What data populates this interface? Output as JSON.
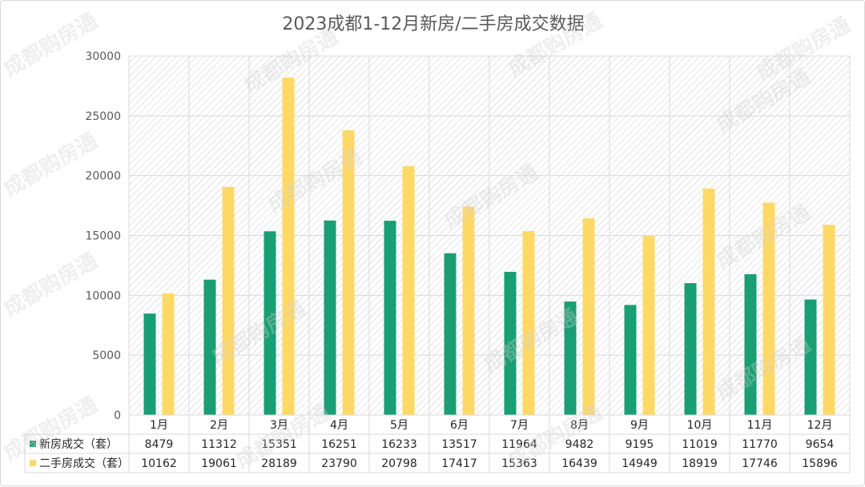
{
  "watermark_text": "成都购房通",
  "chart_data": {
    "type": "bar",
    "title": "2023成都1-12月新房/二手房成交数据",
    "categories": [
      "1月",
      "2月",
      "3月",
      "4月",
      "5月",
      "6月",
      "7月",
      "8月",
      "9月",
      "10月",
      "11月",
      "12月"
    ],
    "series": [
      {
        "name": "新房成交（套）",
        "color": "#1a9e73",
        "values": [
          8479,
          11312,
          15351,
          16251,
          16233,
          13517,
          11964,
          9482,
          9195,
          11019,
          11770,
          9654
        ]
      },
      {
        "name": "二手房成交（套）",
        "color": "#ffd966",
        "values": [
          10162,
          19061,
          28189,
          23790,
          20798,
          17417,
          15363,
          16439,
          14949,
          18919,
          17746,
          15896
        ]
      }
    ],
    "ylim": [
      0,
      30000
    ],
    "yticks": [
      0,
      5000,
      10000,
      15000,
      20000,
      25000,
      30000
    ],
    "grid": true,
    "legend": "data-table"
  }
}
